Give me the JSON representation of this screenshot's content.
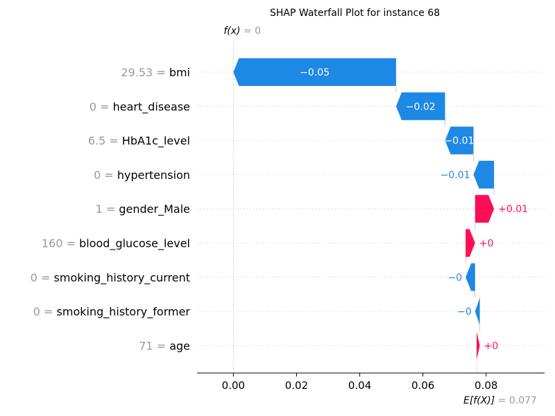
{
  "chart_data": {
    "type": "waterfall",
    "title": "SHAP Waterfall Plot for instance 68",
    "fx_label": "f(x)",
    "fx_value": "0",
    "fx_numeric": 0.0,
    "base_label": "E[f(X)]",
    "base_value": "0.077",
    "base_numeric": 0.077,
    "xlim": [
      -0.0115,
      0.0985
    ],
    "xticks": [
      0.0,
      0.02,
      0.04,
      0.06,
      0.08
    ],
    "xtick_labels": [
      "0.00",
      "0.02",
      "0.04",
      "0.06",
      "0.08"
    ],
    "features": [
      {
        "value": "29.53",
        "name": "bmi",
        "start": 0.0515,
        "end": 0.0,
        "label": "−0.05"
      },
      {
        "value": "0",
        "name": "heart_disease",
        "start": 0.067,
        "end": 0.0515,
        "label": "−0.02"
      },
      {
        "value": "6.5",
        "name": "HbA1c_level",
        "start": 0.076,
        "end": 0.067,
        "label": "−0.01"
      },
      {
        "value": "0",
        "name": "hypertension",
        "start": 0.0825,
        "end": 0.076,
        "label": "−0.01"
      },
      {
        "value": "1",
        "name": "gender_Male",
        "start": 0.0765,
        "end": 0.0825,
        "label": "+0.01"
      },
      {
        "value": "160",
        "name": "blood_glucose_level",
        "start": 0.0735,
        "end": 0.0765,
        "label": "+0"
      },
      {
        "value": "0",
        "name": "smoking_history_current",
        "start": 0.0765,
        "end": 0.0735,
        "label": "−0"
      },
      {
        "value": "0",
        "name": "smoking_history_former",
        "start": 0.078,
        "end": 0.0765,
        "label": "−0"
      },
      {
        "value": "71",
        "name": "age",
        "start": 0.077,
        "end": 0.078,
        "label": "+0"
      }
    ],
    "colors": {
      "positive": "#ff0d57",
      "negative": "#1e88e5",
      "feature_value": "#999999",
      "feature_name": "#000000",
      "gridline": "#cccccc"
    }
  }
}
